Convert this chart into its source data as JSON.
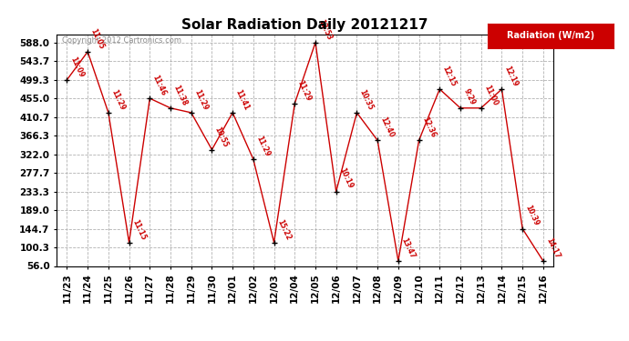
{
  "title": "Solar Radiation Daily 20121217",
  "copyright_text": "Copyright 2012 Cartronics.com",
  "ylabel": "Radiation (W/m2)",
  "yticks": [
    56.0,
    100.3,
    144.7,
    189.0,
    233.3,
    277.7,
    322.0,
    366.3,
    410.7,
    455.0,
    499.3,
    543.7,
    588.0
  ],
  "xlabels": [
    "11/23",
    "11/24",
    "11/25",
    "11/26",
    "11/27",
    "11/28",
    "11/29",
    "11/30",
    "12/01",
    "12/02",
    "12/03",
    "12/04",
    "12/05",
    "12/06",
    "12/07",
    "12/08",
    "12/09",
    "12/10",
    "12/11",
    "12/12",
    "12/13",
    "12/14",
    "12/15",
    "12/16"
  ],
  "x_indices": [
    0,
    1,
    2,
    3,
    4,
    5,
    6,
    7,
    8,
    9,
    10,
    11,
    12,
    13,
    14,
    15,
    16,
    17,
    18,
    19,
    20,
    21,
    22,
    23
  ],
  "values": [
    499.3,
    566.0,
    421.0,
    112.0,
    455.0,
    432.0,
    421.0,
    333.0,
    421.0,
    310.0,
    112.0,
    443.0,
    588.0,
    233.3,
    421.0,
    355.0,
    68.0,
    355.0,
    477.0,
    432.0,
    432.0,
    477.0,
    144.7,
    68.0
  ],
  "time_labels": [
    "11:09",
    "11:05",
    "11:29",
    "11:15",
    "11:46",
    "11:38",
    "11:29",
    "10:55",
    "11:41",
    "11:29",
    "15:22",
    "11:29",
    "12:53",
    "10:19",
    "10:35",
    "12:40",
    "13:47",
    "12:36",
    "12:15",
    "9:29",
    "11:00",
    "12:19",
    "10:39",
    "14:17"
  ],
  "line_color": "#cc0000",
  "marker_color": "black",
  "bg_color": "#ffffff",
  "grid_color": "#aaaaaa",
  "legend_bg": "#cc0000",
  "legend_text_color": "#ffffff",
  "title_fontsize": 11,
  "tick_fontsize": 7.5,
  "label_fontsize": 7
}
